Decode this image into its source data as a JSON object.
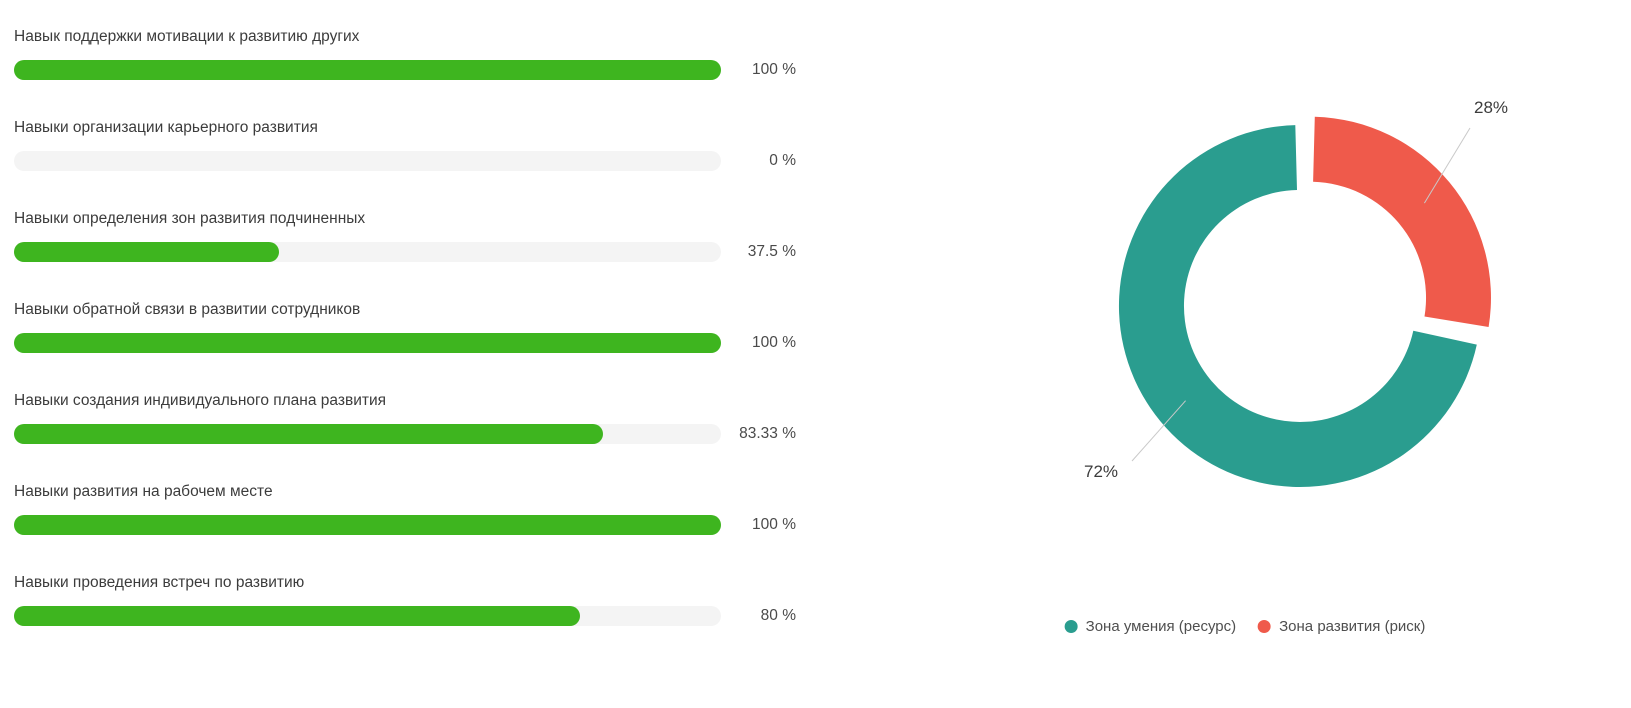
{
  "colors": {
    "bar_fill": "#3eb51f",
    "bar_track": "#f4f4f4",
    "zone_resource": "#2a9d8f",
    "zone_risk": "#ef5a4b",
    "label_text": "#3c3c3c",
    "leader_line": "#c9c9c9"
  },
  "chart_data": [
    {
      "type": "bar",
      "orientation": "horizontal",
      "categories": [
        "Навык поддержки мотивации к развитию других",
        "Навыки организации карьерного развития",
        "Навыки определения зон развития подчиненных",
        "Навыки обратной связи в развитии сотрудников",
        "Навыки создания индивидуального плана развития",
        "Навыки развития на рабочем месте",
        "Навыки проведения встреч по развитию"
      ],
      "values": [
        100,
        0,
        37.5,
        100,
        83.33,
        100,
        80
      ],
      "value_labels": [
        "100 %",
        "0 %",
        "37.5 %",
        "100 %",
        "83.33 %",
        "100 %",
        "80 %"
      ],
      "xlim": [
        0,
        100
      ],
      "bar_color": "#3eb51f",
      "track_color": "#f4f4f4",
      "grid": false
    },
    {
      "type": "pie",
      "donut": true,
      "slices": [
        {
          "name": "Зона умения (ресурс)",
          "value": 72,
          "label": "72%",
          "color": "#2a9d8f",
          "exploded": false
        },
        {
          "name": "Зона развития (риск)",
          "value": 28,
          "label": "28%",
          "color": "#ef5a4b",
          "exploded": true
        }
      ],
      "legend_position": "bottom"
    }
  ]
}
